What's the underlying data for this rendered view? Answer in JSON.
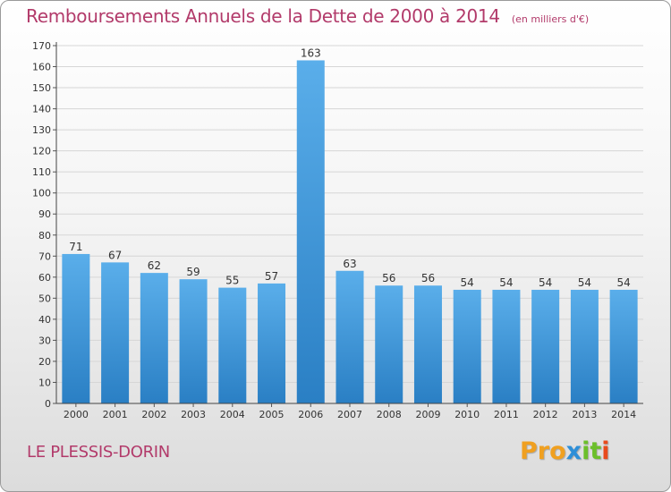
{
  "header": {
    "title": "Remboursements Annuels de la Dette de 2000 à 2014",
    "unit": "(en milliers d'€)"
  },
  "footer": {
    "commune": "LE PLESSIS-DORIN",
    "logo": [
      "Pro",
      "x",
      "it",
      "i"
    ]
  },
  "colors": {
    "bar_top": "#5aaeea",
    "bar_bottom": "#2a7fc4",
    "title": "#b23a6a",
    "grid": "#d6d6d6"
  },
  "chart_data": {
    "type": "bar",
    "categories": [
      "2000",
      "2001",
      "2002",
      "2003",
      "2004",
      "2005",
      "2006",
      "2007",
      "2008",
      "2009",
      "2010",
      "2011",
      "2012",
      "2013",
      "2014"
    ],
    "values": [
      71,
      67,
      62,
      59,
      55,
      57,
      163,
      63,
      56,
      56,
      54,
      54,
      54,
      54,
      54
    ],
    "title": "Remboursements Annuels de la Dette de 2000 à 2014",
    "ylim": [
      0,
      170
    ],
    "yticks": [
      0,
      10,
      20,
      30,
      40,
      50,
      60,
      70,
      80,
      90,
      100,
      110,
      120,
      130,
      140,
      150,
      160,
      170
    ],
    "grid": true,
    "data_labels": true
  }
}
